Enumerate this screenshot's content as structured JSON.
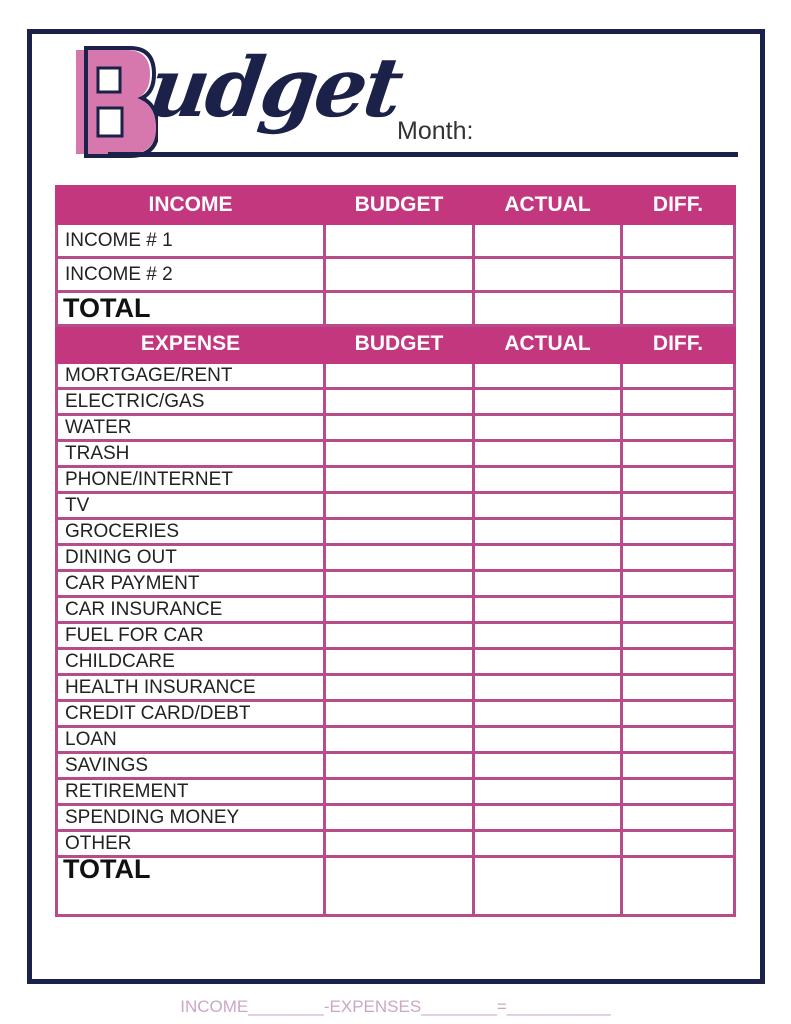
{
  "title": {
    "initial": "B",
    "rest": "udget",
    "month_label": "Month:"
  },
  "income": {
    "headers": [
      "INCOME",
      "BUDGET",
      "ACTUAL",
      "DIFF."
    ],
    "rows": [
      "INCOME # 1",
      "INCOME # 2"
    ],
    "total_label": "TOTAL"
  },
  "expense": {
    "headers": [
      "EXPENSE",
      "BUDGET",
      "ACTUAL",
      "DIFF."
    ],
    "rows": [
      "MORTGAGE/RENT",
      "ELECTRIC/GAS",
      "WATER",
      "TRASH",
      "PHONE/INTERNET",
      "TV",
      "GROCERIES",
      "DINING OUT",
      "CAR PAYMENT",
      "CAR INSURANCE",
      "FUEL FOR CAR",
      "CHILDCARE",
      "HEALTH INSURANCE",
      "CREDIT CARD/DEBT",
      "LOAN",
      "SAVINGS",
      "RETIREMENT",
      "SPENDING MONEY",
      "OTHER"
    ],
    "total_label": "TOTAL"
  },
  "footer": "INCOME________-EXPENSES________=___________",
  "colors": {
    "navy": "#1b2148",
    "magenta": "#c2377e",
    "pink": "#d677ad"
  }
}
